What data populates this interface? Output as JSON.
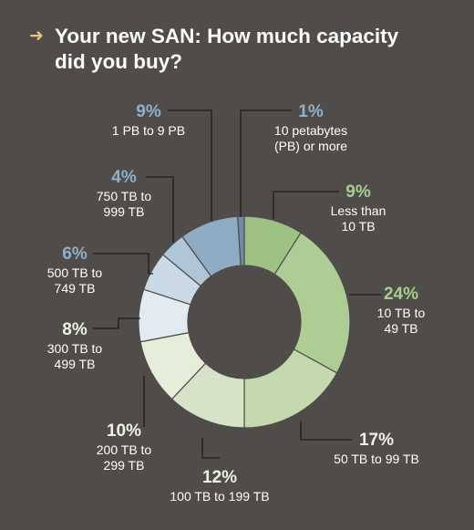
{
  "title": "Your new SAN: How much capacity did you buy?",
  "title_line1": "Your new SAN: How much capacity",
  "title_line2": "did you buy?",
  "colors": {
    "background": "#4f4c4a",
    "arrow": "#e3c77a",
    "green_pct": "#a8cf8e",
    "blue_pct": "#8fb0cc",
    "pale_pct": "#eef2e3"
  },
  "chart_data": {
    "type": "pie",
    "variant": "donut",
    "title": "Your new SAN: How much capacity did you buy?",
    "slices": [
      {
        "label": "Less than 10 TB",
        "value": 9,
        "pct_label": "9%",
        "label_lines": [
          "Less than",
          "10 TB"
        ],
        "color": "#9ec283"
      },
      {
        "label": "10 TB to 49 TB",
        "value": 24,
        "pct_label": "24%",
        "label_lines": [
          "10 TB to",
          "49 TB"
        ],
        "color": "#aecd95"
      },
      {
        "label": "50 TB to 99 TB",
        "value": 17,
        "pct_label": "17%",
        "label_lines": [
          "50 TB to 99 TB"
        ],
        "color": "#c4d9ae"
      },
      {
        "label": "100 TB to 199 TB",
        "value": 12,
        "pct_label": "12%",
        "label_lines": [
          "100 TB to 199 TB"
        ],
        "color": "#d6e3c6"
      },
      {
        "label": "200 TB to 299 TB",
        "value": 10,
        "pct_label": "10%",
        "label_lines": [
          "200 TB to",
          "299 TB"
        ],
        "color": "#e6eed9"
      },
      {
        "label": "300 TB to 499 TB",
        "value": 8,
        "pct_label": "8%",
        "label_lines": [
          "300 TB to",
          "499 TB"
        ],
        "color": "#e2ebf2"
      },
      {
        "label": "500 TB to 749 TB",
        "value": 6,
        "pct_label": "6%",
        "label_lines": [
          "500 TB to",
          "749 TB"
        ],
        "color": "#c9d9e6"
      },
      {
        "label": "750 TB to 999 TB",
        "value": 4,
        "pct_label": "4%",
        "label_lines": [
          "750 TB to",
          "999 TB"
        ],
        "color": "#afc6d8"
      },
      {
        "label": "1 PB to 9 PB",
        "value": 9,
        "pct_label": "9%",
        "label_lines": [
          "1 PB to 9 PB"
        ],
        "color": "#8eacc4"
      },
      {
        "label": "10 petabytes (PB) or more",
        "value": 1,
        "pct_label": "1%",
        "label_lines": [
          "10 petabytes",
          "(PB) or more"
        ],
        "color": "#6f8da6"
      }
    ]
  }
}
